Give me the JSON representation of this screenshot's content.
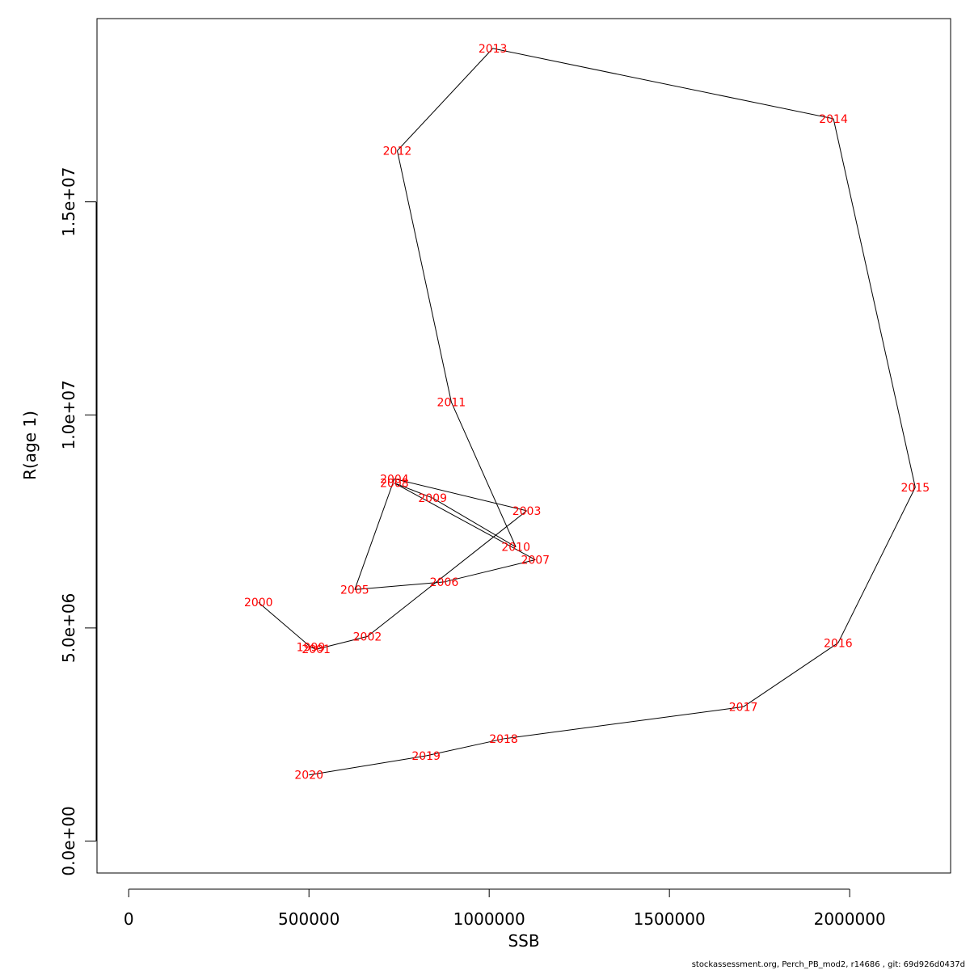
{
  "chart_data": {
    "type": "line",
    "title": "",
    "xlabel": "SSB",
    "ylabel": "R(age 1)",
    "xlim": [
      -88000,
      2280000
    ],
    "ylim": [
      -750000,
      19300000
    ],
    "x_ticks": [
      0,
      500000,
      1000000,
      1500000,
      2000000
    ],
    "x_tick_labels": [
      "0",
      "500000",
      "1000000",
      "1500000",
      "2000000"
    ],
    "y_ticks": [
      0,
      5000000,
      10000000,
      15000000
    ],
    "y_tick_labels": [
      "0.0e+00",
      "5.0e+06",
      "1.0e+07",
      "1.5e+07"
    ],
    "grid": false,
    "line_color": "#000000",
    "label_color": "#ff0000",
    "points": [
      {
        "label": "2000",
        "x": 360000,
        "y": 5600000
      },
      {
        "label": "1999",
        "x": 505000,
        "y": 4550000
      },
      {
        "label": "2001",
        "x": 520000,
        "y": 4500000
      },
      {
        "label": "2002",
        "x": 662000,
        "y": 4800000
      },
      {
        "label": "2003",
        "x": 1104000,
        "y": 7750000
      },
      {
        "label": "2004",
        "x": 737000,
        "y": 8500000
      },
      {
        "label": "2005",
        "x": 627000,
        "y": 5900000
      },
      {
        "label": "2006",
        "x": 875000,
        "y": 6080000
      },
      {
        "label": "2007",
        "x": 1128000,
        "y": 6600000
      },
      {
        "label": "2008",
        "x": 737000,
        "y": 8400000
      },
      {
        "label": "2009",
        "x": 843000,
        "y": 8050000
      },
      {
        "label": "2010",
        "x": 1074000,
        "y": 6900000
      },
      {
        "label": "2011",
        "x": 895000,
        "y": 10300000
      },
      {
        "label": "2012",
        "x": 745000,
        "y": 16200000
      },
      {
        "label": "2013",
        "x": 1010000,
        "y": 18600000
      },
      {
        "label": "2014",
        "x": 1955000,
        "y": 16950000
      },
      {
        "label": "2015",
        "x": 2182000,
        "y": 8300000
      },
      {
        "label": "2016",
        "x": 1968000,
        "y": 4650000
      },
      {
        "label": "2017",
        "x": 1705000,
        "y": 3150000
      },
      {
        "label": "2018",
        "x": 1040000,
        "y": 2400000
      },
      {
        "label": "2019",
        "x": 825000,
        "y": 2000000
      },
      {
        "label": "2020",
        "x": 500000,
        "y": 1550000
      }
    ]
  },
  "footer": "stockassessment.org, Perch_PB_mod2, r14686 , git: 69d926d0437d"
}
